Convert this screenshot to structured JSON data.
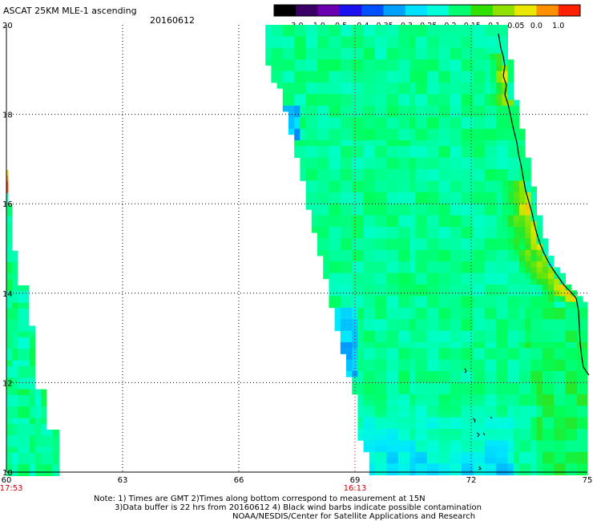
{
  "header": {
    "title": "ASCAT 25KM MLE-1 ascending",
    "date": "20160612"
  },
  "colorbar": {
    "ticks": [
      "-3.0",
      "-1.0",
      "-0.5",
      "-0.4",
      "-0.35",
      "-0.3",
      "-0.25",
      "-0.2",
      "-0.15",
      "-0.1",
      "-0.05",
      "0.0",
      "1.0"
    ],
    "colors": [
      "#000000",
      "#3a0066",
      "#6a00b0",
      "#1a10f0",
      "#0050ff",
      "#00a0ff",
      "#00e0ff",
      "#00ffd8",
      "#00ff70",
      "#30e000",
      "#90e000",
      "#e8e800",
      "#ff9000",
      "#ff2000"
    ]
  },
  "chart_data": {
    "type": "heatmap",
    "xlim": [
      60,
      75
    ],
    "ylim": [
      10,
      20
    ],
    "x_ticks": [
      "60",
      "63",
      "66",
      "69",
      "72",
      "75"
    ],
    "y_ticks": [
      "10",
      "12",
      "14",
      "16",
      "18",
      "20"
    ],
    "time_labels": [
      {
        "x": 60,
        "label": "17:53"
      },
      {
        "x": 69,
        "label": "16:13"
      }
    ],
    "grid": true,
    "value_range": [
      -3.0,
      1.0
    ]
  },
  "footer": {
    "line1": "Note: 1) Times are GMT 2)Times along bottom correspond to measurement at 15N",
    "line2": "3)Data buffer is 22 hrs from 20160612 4) Black wind barbs indicate possible contamination",
    "line3": "NOAA/NESDIS/Center for Satellite Applications and Research"
  }
}
